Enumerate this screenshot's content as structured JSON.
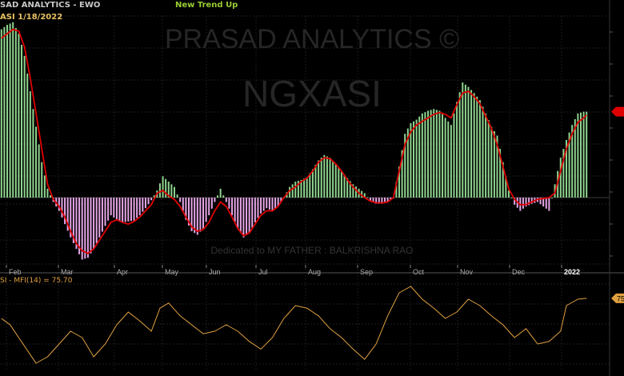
{
  "header": {
    "title": "SAD ANALYTICS - EWO",
    "subtitle": "ASI  1/18/2022",
    "signal": "New Trend Up"
  },
  "watermark": {
    "line1": "PRASAD ANALYTICS ©",
    "line2": "NGXASI",
    "dedication": "Dedicated to MY FATHER : BALKRISHNA RAO"
  },
  "months": [
    "Feb",
    "Mar",
    "Apr",
    "May",
    "Jun",
    "Jul",
    "Aug",
    "Sep",
    "Oct",
    "Nov",
    "Dec",
    "2022"
  ],
  "lower_panel": {
    "label": "SI - MFI(14) = 75.70",
    "right_value": "75"
  },
  "colors": {
    "positive_bar": "#8fd48f",
    "negative_bar": "#e7a6e7",
    "signal_line": "#e00000",
    "mfi_line": "#e0a040",
    "title": "#c8c8c8",
    "subtitle": "#e8c060",
    "signal_text": "#9acd32",
    "marker": "#e00000",
    "mfi_marker": "#e0a040"
  },
  "chart_data": [
    {
      "type": "bar",
      "name": "EWO",
      "y_anchors": [
        [
          0,
          190
        ],
        [
          2,
          195
        ],
        [
          4,
          198
        ],
        [
          6,
          185
        ],
        [
          8,
          160
        ],
        [
          10,
          120
        ],
        [
          12,
          80
        ],
        [
          14,
          40
        ],
        [
          16,
          10
        ],
        [
          18,
          -5
        ],
        [
          20,
          -15
        ],
        [
          22,
          -30
        ],
        [
          24,
          -45
        ],
        [
          26,
          -58
        ],
        [
          28,
          -70
        ],
        [
          30,
          -68
        ],
        [
          32,
          -58
        ],
        [
          34,
          -45
        ],
        [
          36,
          -32
        ],
        [
          38,
          -20
        ],
        [
          40,
          -25
        ],
        [
          42,
          -28
        ],
        [
          44,
          -27
        ],
        [
          46,
          -26
        ],
        [
          48,
          -20
        ],
        [
          50,
          -12
        ],
        [
          52,
          -3
        ],
        [
          54,
          8
        ],
        [
          56,
          24
        ],
        [
          58,
          18
        ],
        [
          60,
          12
        ],
        [
          62,
          -5
        ],
        [
          64,
          -25
        ],
        [
          66,
          -38
        ],
        [
          68,
          -42
        ],
        [
          70,
          -35
        ],
        [
          72,
          -20
        ],
        [
          74,
          -5
        ],
        [
          76,
          10
        ],
        [
          78,
          -5
        ],
        [
          80,
          -20
        ],
        [
          82,
          -35
        ],
        [
          84,
          -45
        ],
        [
          86,
          -40
        ],
        [
          88,
          -28
        ],
        [
          90,
          -18
        ],
        [
          92,
          -12
        ],
        [
          94,
          -15
        ],
        [
          96,
          -10
        ],
        [
          98,
          0
        ],
        [
          100,
          12
        ],
        [
          102,
          18
        ],
        [
          104,
          20
        ],
        [
          106,
          23
        ],
        [
          108,
          32
        ],
        [
          110,
          42
        ],
        [
          112,
          48
        ],
        [
          114,
          45
        ],
        [
          116,
          38
        ],
        [
          118,
          30
        ],
        [
          120,
          22
        ],
        [
          122,
          15
        ],
        [
          124,
          10
        ],
        [
          126,
          5
        ],
        [
          128,
          -4
        ],
        [
          130,
          -7
        ],
        [
          132,
          -7
        ],
        [
          134,
          -5
        ],
        [
          136,
          0
        ],
        [
          138,
          35
        ],
        [
          140,
          72
        ],
        [
          142,
          84
        ],
        [
          144,
          88
        ],
        [
          146,
          95
        ],
        [
          148,
          98
        ],
        [
          150,
          100
        ],
        [
          152,
          98
        ],
        [
          154,
          90
        ],
        [
          156,
          82
        ],
        [
          158,
          108
        ],
        [
          160,
          130
        ],
        [
          162,
          125
        ],
        [
          164,
          118
        ],
        [
          166,
          110
        ],
        [
          168,
          95
        ],
        [
          170,
          80
        ],
        [
          172,
          70
        ],
        [
          174,
          40
        ],
        [
          176,
          8
        ],
        [
          178,
          -8
        ],
        [
          180,
          -15
        ],
        [
          182,
          -10
        ],
        [
          184,
          -7
        ],
        [
          186,
          -5
        ],
        [
          188,
          -10
        ],
        [
          190,
          -15
        ],
        [
          192,
          15
        ],
        [
          194,
          45
        ],
        [
          196,
          65
        ],
        [
          198,
          82
        ],
        [
          200,
          95
        ],
        [
          202,
          97
        ],
        [
          203,
          97
        ]
      ],
      "signal_anchors": [
        [
          0,
          180
        ],
        [
          2,
          185
        ],
        [
          4,
          190
        ],
        [
          6,
          188
        ],
        [
          8,
          170
        ],
        [
          10,
          135
        ],
        [
          12,
          95
        ],
        [
          14,
          55
        ],
        [
          16,
          15
        ],
        [
          18,
          -2
        ],
        [
          20,
          -10
        ],
        [
          22,
          -22
        ],
        [
          24,
          -38
        ],
        [
          26,
          -52
        ],
        [
          28,
          -60
        ],
        [
          30,
          -63
        ],
        [
          32,
          -58
        ],
        [
          34,
          -48
        ],
        [
          36,
          -38
        ],
        [
          38,
          -28
        ],
        [
          40,
          -25
        ],
        [
          42,
          -28
        ],
        [
          44,
          -30
        ],
        [
          46,
          -27
        ],
        [
          48,
          -22
        ],
        [
          50,
          -15
        ],
        [
          52,
          -8
        ],
        [
          54,
          5
        ],
        [
          56,
          8
        ],
        [
          58,
          2
        ],
        [
          60,
          -2
        ],
        [
          62,
          -10
        ],
        [
          64,
          -22
        ],
        [
          66,
          -33
        ],
        [
          68,
          -38
        ],
        [
          70,
          -36
        ],
        [
          72,
          -28
        ],
        [
          74,
          -15
        ],
        [
          76,
          -5
        ],
        [
          78,
          -10
        ],
        [
          80,
          -22
        ],
        [
          82,
          -35
        ],
        [
          84,
          -43
        ],
        [
          86,
          -40
        ],
        [
          88,
          -30
        ],
        [
          90,
          -20
        ],
        [
          92,
          -15
        ],
        [
          94,
          -15
        ],
        [
          96,
          -10
        ],
        [
          98,
          0
        ],
        [
          100,
          8
        ],
        [
          102,
          12
        ],
        [
          104,
          18
        ],
        [
          106,
          22
        ],
        [
          108,
          30
        ],
        [
          110,
          40
        ],
        [
          112,
          45
        ],
        [
          114,
          44
        ],
        [
          116,
          38
        ],
        [
          118,
          30
        ],
        [
          120,
          20
        ],
        [
          122,
          12
        ],
        [
          124,
          5
        ],
        [
          126,
          0
        ],
        [
          128,
          -4
        ],
        [
          130,
          -6
        ],
        [
          132,
          -6
        ],
        [
          134,
          -5
        ],
        [
          136,
          0
        ],
        [
          138,
          30
        ],
        [
          140,
          60
        ],
        [
          142,
          74
        ],
        [
          144,
          82
        ],
        [
          146,
          86
        ],
        [
          148,
          90
        ],
        [
          150,
          94
        ],
        [
          152,
          96
        ],
        [
          154,
          94
        ],
        [
          156,
          90
        ],
        [
          158,
          105
        ],
        [
          160,
          118
        ],
        [
          162,
          120
        ],
        [
          164,
          114
        ],
        [
          166,
          106
        ],
        [
          168,
          92
        ],
        [
          170,
          78
        ],
        [
          172,
          60
        ],
        [
          174,
          35
        ],
        [
          176,
          10
        ],
        [
          178,
          -2
        ],
        [
          180,
          -8
        ],
        [
          182,
          -8
        ],
        [
          184,
          -5
        ],
        [
          186,
          -2
        ],
        [
          188,
          -1
        ],
        [
          190,
          0
        ],
        [
          192,
          5
        ],
        [
          194,
          30
        ],
        [
          196,
          55
        ],
        [
          198,
          72
        ],
        [
          200,
          85
        ],
        [
          202,
          90
        ],
        [
          203,
          93
        ]
      ],
      "ylim": [
        -75,
        205
      ]
    },
    {
      "type": "line",
      "name": "MFI(14)",
      "x_anchors": [
        0,
        3,
        6,
        9,
        12,
        16,
        20,
        24,
        28,
        32,
        36,
        40,
        44,
        48,
        52,
        55,
        58,
        62,
        66,
        70,
        74,
        78,
        82,
        86,
        90,
        94,
        98,
        102,
        106,
        110,
        114,
        118,
        122,
        126,
        130,
        134,
        138,
        142,
        146,
        150,
        154,
        158,
        162,
        166,
        170,
        174,
        178,
        182,
        186,
        190,
        194,
        196,
        200,
        203
      ],
      "values": [
        60,
        55,
        45,
        35,
        25,
        30,
        40,
        50,
        45,
        30,
        40,
        55,
        65,
        58,
        50,
        68,
        72,
        62,
        55,
        48,
        50,
        55,
        50,
        42,
        36,
        45,
        60,
        70,
        68,
        62,
        52,
        45,
        36,
        28,
        40,
        62,
        80,
        85,
        75,
        68,
        60,
        65,
        75,
        70,
        62,
        55,
        45,
        52,
        40,
        42,
        50,
        70,
        75,
        75.7
      ],
      "ylim": [
        20,
        90
      ]
    }
  ]
}
